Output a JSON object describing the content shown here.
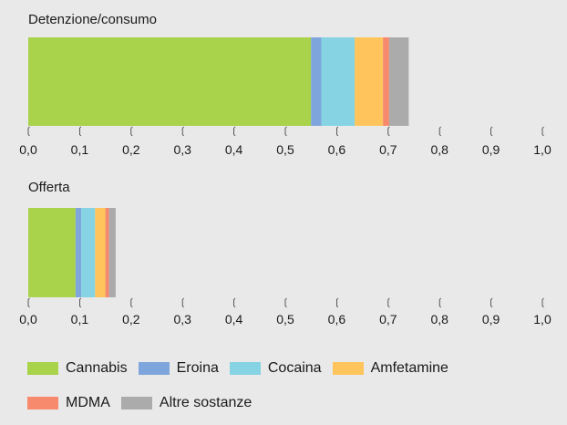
{
  "chart_data": [
    {
      "type": "bar",
      "orientation": "horizontal",
      "stacked": true,
      "title": "Detenzione/consumo",
      "xlim": [
        0,
        1.0
      ],
      "x_ticks": [
        "0,0",
        "0,1",
        "0,2",
        "0,3",
        "0,4",
        "0,5",
        "0,6",
        "0,7",
        "0,8",
        "0,9",
        "1,0"
      ],
      "grid": false,
      "series": [
        {
          "name": "Cannabis",
          "values": [
            0.55
          ]
        },
        {
          "name": "Eroina",
          "values": [
            0.02
          ]
        },
        {
          "name": "Cocaina",
          "values": [
            0.065
          ]
        },
        {
          "name": "Amfetamine",
          "values": [
            0.055
          ]
        },
        {
          "name": "MDMA",
          "values": [
            0.012
          ]
        },
        {
          "name": "Altre sostanze",
          "values": [
            0.038
          ]
        }
      ]
    },
    {
      "type": "bar",
      "orientation": "horizontal",
      "stacked": true,
      "title": "Offerta",
      "xlim": [
        0,
        1.0
      ],
      "x_ticks": [
        "0,0",
        "0,1",
        "0,2",
        "0,3",
        "0,4",
        "0,5",
        "0,6",
        "0,7",
        "0,8",
        "0,9",
        "1,0"
      ],
      "grid": false,
      "series": [
        {
          "name": "Cannabis",
          "values": [
            0.092
          ]
        },
        {
          "name": "Eroina",
          "values": [
            0.011
          ]
        },
        {
          "name": "Cocaina",
          "values": [
            0.027
          ]
        },
        {
          "name": "Amfetamine",
          "values": [
            0.02
          ]
        },
        {
          "name": "MDMA",
          "values": [
            0.007
          ]
        },
        {
          "name": "Altre sostanze",
          "values": [
            0.013
          ]
        }
      ]
    }
  ],
  "legend": {
    "placement": "bottom",
    "items": [
      {
        "label": "Cannabis",
        "color": "#a8d34a"
      },
      {
        "label": "Eroina",
        "color": "#7ea6dc"
      },
      {
        "label": "Cocaina",
        "color": "#86d4e3"
      },
      {
        "label": "Amfetamine",
        "color": "#ffc55c"
      },
      {
        "label": "MDMA",
        "color": "#f78a6c"
      },
      {
        "label": "Altre sostanze",
        "color": "#ababab"
      }
    ]
  }
}
